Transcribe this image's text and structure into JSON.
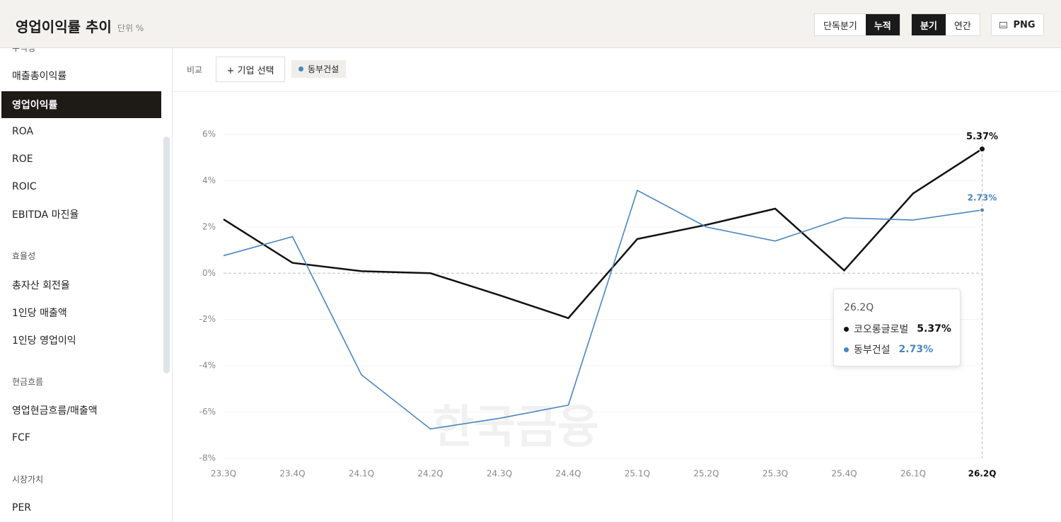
{
  "header": {
    "title": "영업이익률 추이",
    "unit": "단위 %",
    "period_buttons": [
      "단독분기",
      "누적"
    ],
    "freq_buttons": [
      "분기",
      "연간"
    ],
    "export_button": "PNG"
  },
  "sidebar": {
    "sections": [
      {
        "title": "수익성",
        "items": [
          "매출총이익률",
          "영업이익률",
          "ROA",
          "ROE",
          "ROIC",
          "EBITDA 마진율"
        ]
      },
      {
        "title": "효율성",
        "items": [
          "총자산 회전율",
          "1인당 매출액",
          "1인당 영업이익"
        ]
      },
      {
        "title": "현금흐름",
        "items": [
          "영업현금흐름/매출액",
          "FCF"
        ]
      },
      {
        "title": "시장가치",
        "items": [
          "PER"
        ]
      }
    ]
  },
  "toolbar": {
    "compare_label": "비교",
    "add_button": "+ 기업 선택",
    "chips": [
      "동부건설"
    ]
  },
  "watermark": "한국금융",
  "chart_data": {
    "type": "line",
    "categories": [
      "23.3Q",
      "23.4Q",
      "24.1Q",
      "24.2Q",
      "24.3Q",
      "24.4Q",
      "25.1Q",
      "25.2Q",
      "25.3Q",
      "25.4Q",
      "26.1Q",
      "26.2Q"
    ],
    "series": [
      {
        "name": "코오롱글로벌",
        "color": "#111111",
        "values": [
          2.33,
          0.45,
          0.09,
          0.0,
          -0.95,
          -1.94,
          1.48,
          2.09,
          2.79,
          0.12,
          3.45,
          5.37
        ],
        "value_labels": [
          null,
          null,
          null,
          null,
          null,
          null,
          null,
          null,
          null,
          null,
          null,
          "5.37%"
        ]
      },
      {
        "name": "동부건설",
        "color": "#4a86bf",
        "values": [
          0.76,
          1.58,
          -4.39,
          -6.73,
          -6.27,
          -5.7,
          3.58,
          2.0,
          1.39,
          2.39,
          2.3,
          2.73
        ],
        "value_labels": [
          null,
          null,
          null,
          null,
          null,
          null,
          null,
          null,
          null,
          null,
          null,
          "2.73%"
        ]
      }
    ],
    "ylim": [
      -8,
      6
    ],
    "yticks": [
      {
        "value": -8,
        "label": "-8%"
      },
      {
        "value": -6,
        "label": "-6%"
      },
      {
        "value": -4,
        "label": "-4%"
      },
      {
        "value": -2,
        "label": "-2%"
      },
      {
        "value": 0,
        "label": "0%"
      },
      {
        "value": 2,
        "label": "2%"
      },
      {
        "value": 4,
        "label": "4%"
      },
      {
        "value": 6,
        "label": "6%"
      }
    ],
    "grid": true
  }
}
